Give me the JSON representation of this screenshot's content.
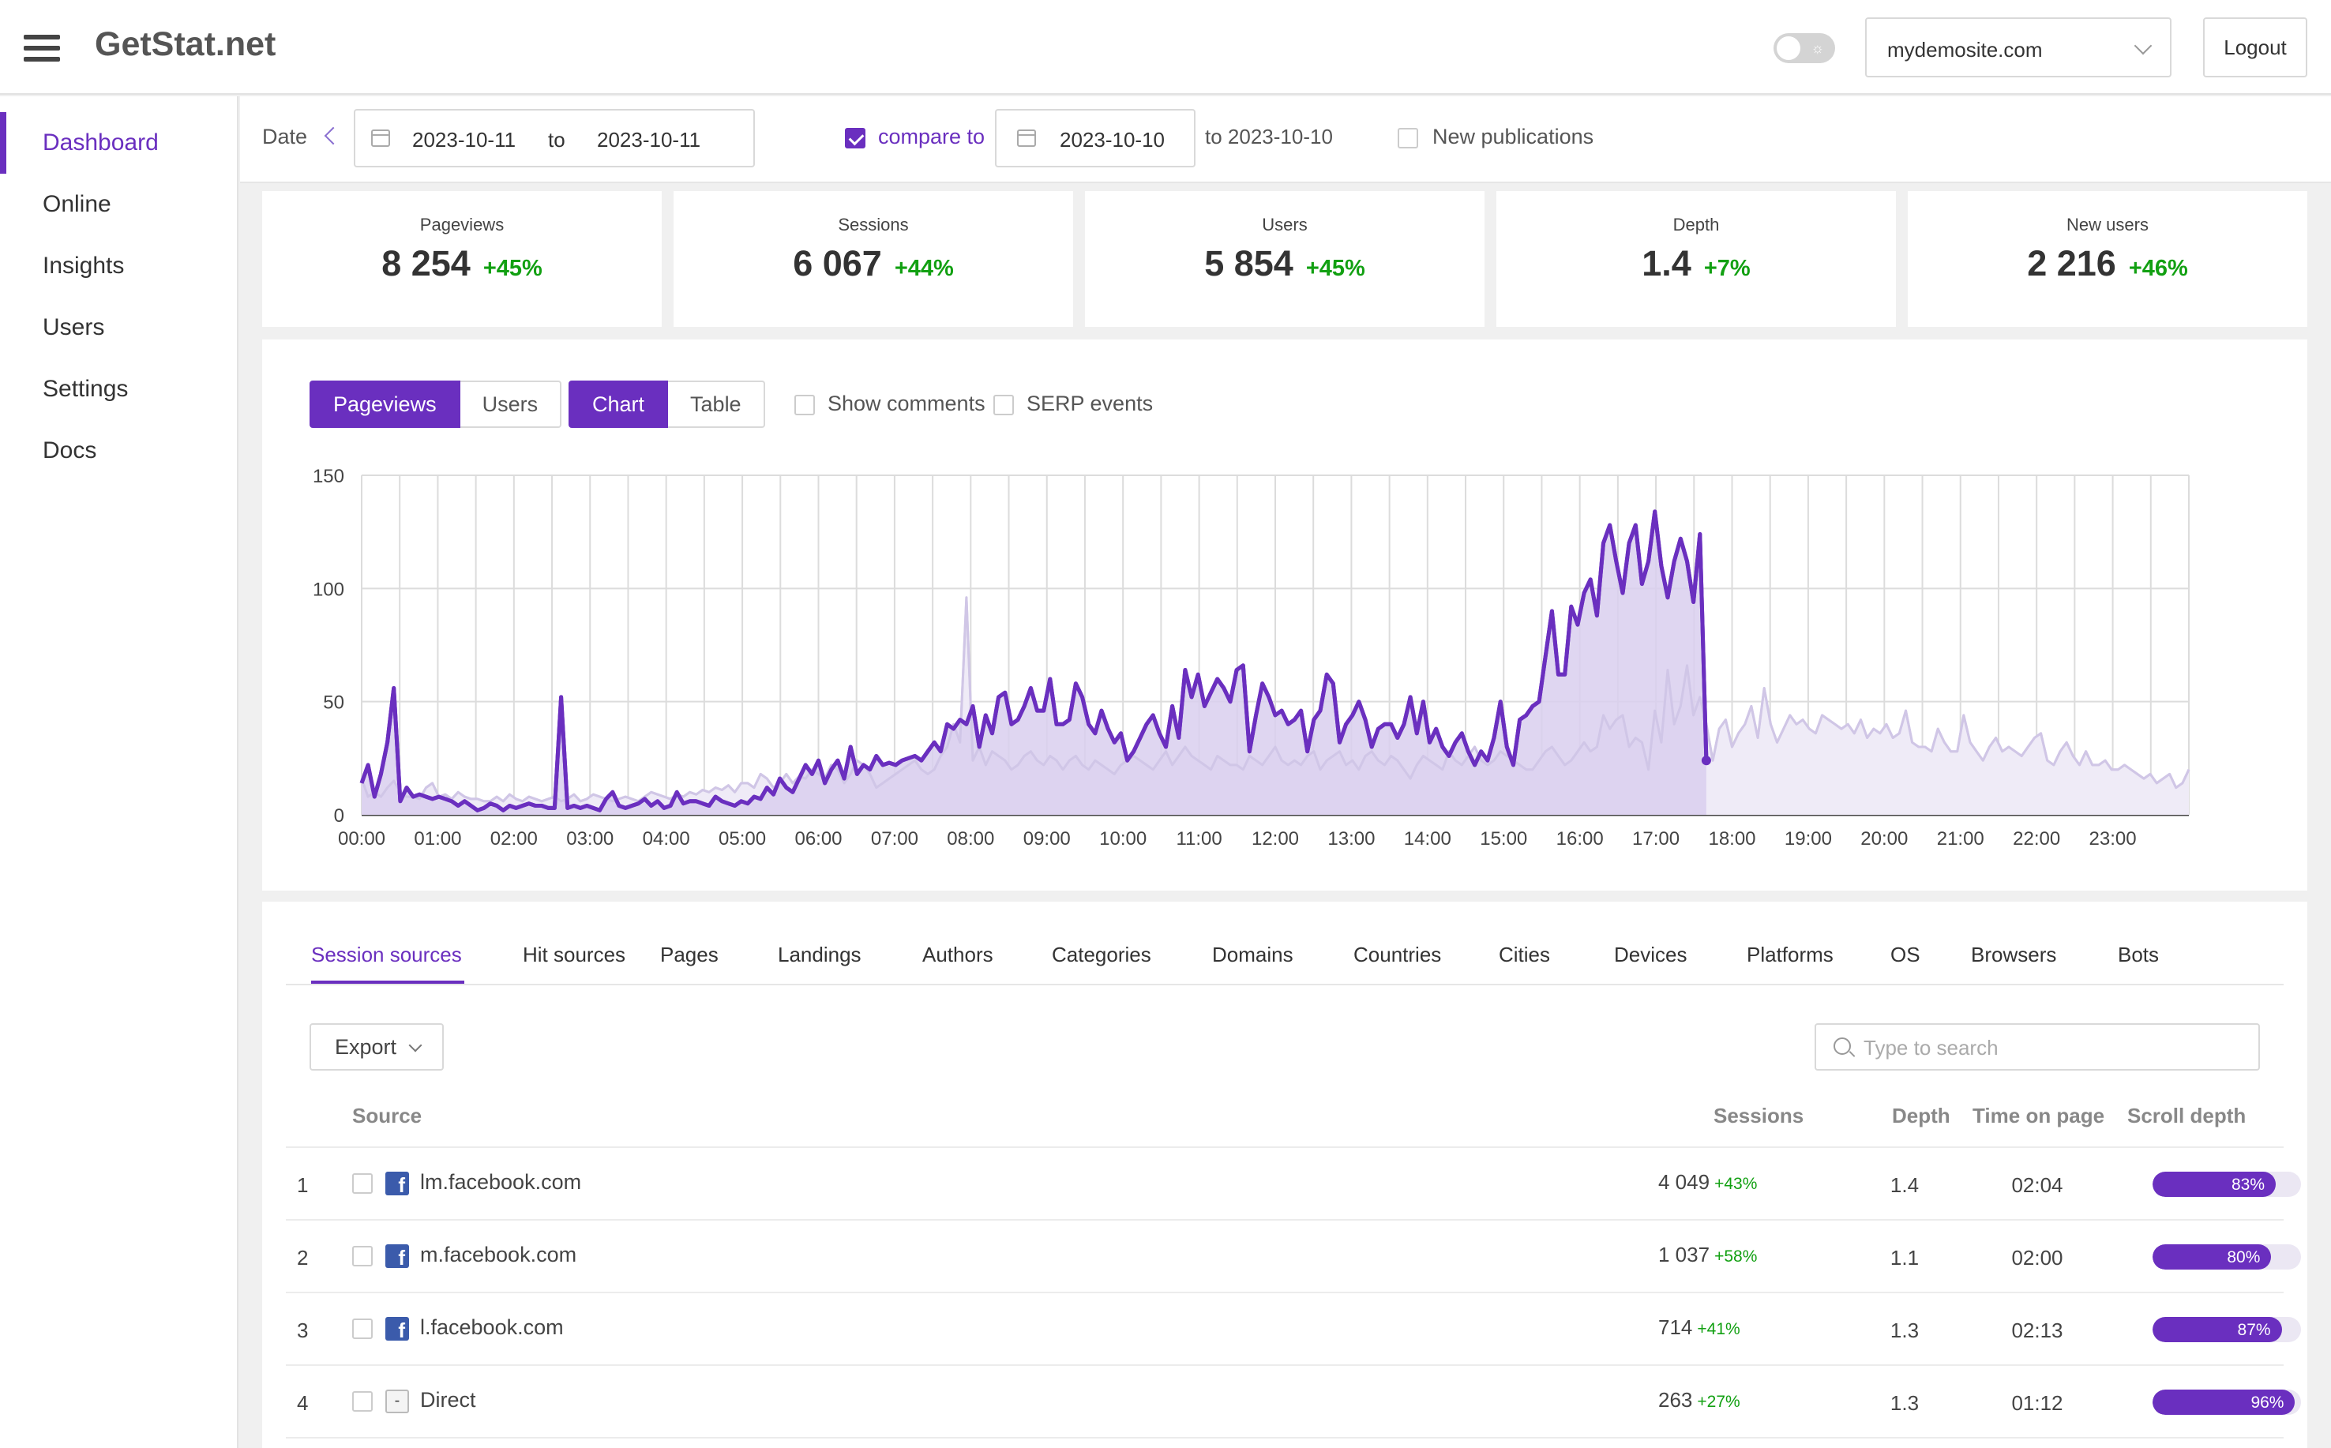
{
  "app": {
    "title": "GetStat.net"
  },
  "header": {
    "site": "mydemosite.com",
    "logout_label": "Logout"
  },
  "sidebar": {
    "items": [
      {
        "label": "Dashboard",
        "active": true
      },
      {
        "label": "Online"
      },
      {
        "label": "Insights"
      },
      {
        "label": "Users"
      },
      {
        "label": "Settings"
      },
      {
        "label": "Docs"
      }
    ]
  },
  "datebar": {
    "date_label": "Date",
    "from": "2023-10-11",
    "to_label": "to",
    "to": "2023-10-11",
    "compare_label": "compare to",
    "compare_from": "2023-10-10",
    "compare_to": "to 2023-10-10",
    "new_publications_label": "New publications"
  },
  "kpis": [
    {
      "label": "Pageviews",
      "value": "8 254",
      "change": "+45%"
    },
    {
      "label": "Sessions",
      "value": "6 067",
      "change": "+44%"
    },
    {
      "label": "Users",
      "value": "5 854",
      "change": "+45%"
    },
    {
      "label": "Depth",
      "value": "1.4",
      "change": "+7%"
    },
    {
      "label": "New users",
      "value": "2 216",
      "change": "+46%"
    }
  ],
  "chart_controls": {
    "metric_pageviews": "Pageviews",
    "metric_users": "Users",
    "view_chart": "Chart",
    "view_table": "Table",
    "show_comments": "Show comments",
    "serp_events": "SERP events"
  },
  "chart_data": {
    "type": "area",
    "x_labels": [
      "00:00",
      "01:00",
      "02:00",
      "03:00",
      "04:00",
      "05:00",
      "06:00",
      "07:00",
      "08:00",
      "09:00",
      "10:00",
      "11:00",
      "12:00",
      "13:00",
      "14:00",
      "15:00",
      "16:00",
      "17:00",
      "18:00",
      "19:00",
      "20:00",
      "21:00",
      "22:00",
      "23:00"
    ],
    "ylim": [
      0,
      150
    ],
    "yticks": [
      0,
      50,
      100,
      150
    ],
    "grid": true,
    "colors": {
      "current": "#6a2fbf",
      "current_fill": "#d9cfee",
      "compare": "#cfc5e6",
      "compare_fill": "#efebf7",
      "grid": "#dcdcdc"
    },
    "series": [
      {
        "points": 214,
        "values": [
          14,
          22,
          8,
          18,
          32,
          56,
          6,
          12,
          8,
          9,
          8,
          7,
          8,
          7,
          6,
          4,
          6,
          4,
          2,
          3,
          5,
          4,
          2,
          4,
          3,
          4,
          5,
          4,
          4,
          3,
          3,
          52,
          3,
          4,
          3,
          4,
          3,
          2,
          7,
          10,
          4,
          3,
          4,
          5,
          7,
          4,
          6,
          3,
          4,
          10,
          5,
          6,
          6,
          5,
          4,
          8,
          6,
          5,
          4,
          6,
          5,
          8,
          7,
          12,
          9,
          16,
          12,
          10,
          16,
          22,
          18,
          24,
          14,
          20,
          24,
          16,
          30,
          18,
          22,
          20,
          26,
          22,
          23,
          22,
          24,
          25,
          26,
          24,
          28,
          32,
          28,
          40,
          38,
          42,
          40,
          48,
          30,
          44,
          36,
          52,
          54,
          40,
          42,
          48,
          56,
          46,
          46,
          60,
          40,
          40,
          42,
          58,
          52,
          40,
          36,
          46,
          38,
          32,
          36,
          24,
          28,
          34,
          40,
          44,
          36,
          30,
          48,
          34,
          64,
          52,
          62,
          48,
          54,
          60,
          56,
          50,
          64,
          66,
          28,
          44,
          58,
          52,
          44,
          46,
          40,
          42,
          46,
          28,
          42,
          46,
          62,
          58,
          32,
          40,
          44,
          50,
          42,
          30,
          38,
          40,
          40,
          34,
          40,
          52,
          36,
          50,
          32,
          38,
          30,
          26,
          32,
          36,
          28,
          22,
          28,
          24,
          34,
          50,
          30,
          22,
          42,
          44,
          48,
          50,
          70,
          90,
          62,
          62,
          92,
          84,
          98,
          104,
          88,
          120,
          128,
          112,
          98,
          120,
          128,
          102,
          112,
          134,
          110,
          96,
          112,
          122,
          112,
          94,
          124,
          24
        ]
      },
      {
        "points": 285,
        "values": [
          16,
          8,
          10,
          8,
          12,
          15,
          10,
          8,
          8,
          7,
          12,
          14,
          8,
          9,
          7,
          10,
          8,
          7,
          7,
          6,
          6,
          8,
          6,
          9,
          7,
          6,
          8,
          7,
          6,
          7,
          8,
          6,
          7,
          9,
          6,
          7,
          9,
          8,
          7,
          6,
          7,
          8,
          7,
          6,
          8,
          10,
          9,
          8,
          7,
          9,
          8,
          10,
          9,
          11,
          10,
          12,
          11,
          13,
          10,
          14,
          14,
          12,
          18,
          16,
          12,
          14,
          18,
          14,
          17,
          16,
          20,
          18,
          16,
          22,
          20,
          14,
          18,
          24,
          22,
          18,
          12,
          14,
          16,
          18,
          20,
          22,
          24,
          20,
          18,
          20,
          26,
          30,
          40,
          32,
          96,
          24,
          30,
          22,
          28,
          26,
          24,
          20,
          22,
          26,
          28,
          24,
          22,
          26,
          24,
          20,
          24,
          26,
          22,
          20,
          24,
          22,
          20,
          18,
          22,
          24,
          26,
          24,
          22,
          20,
          24,
          28,
          22,
          26,
          30,
          26,
          24,
          22,
          20,
          26,
          24,
          22,
          22,
          20,
          26,
          24,
          22,
          26,
          30,
          24,
          22,
          24,
          22,
          26,
          28,
          20,
          24,
          26,
          28,
          22,
          24,
          20,
          26,
          28,
          24,
          22,
          26,
          24,
          20,
          16,
          22,
          26,
          24,
          22,
          20,
          28,
          24,
          22,
          26,
          30,
          24,
          22,
          24,
          28,
          26,
          24,
          22,
          20,
          20,
          24,
          28,
          30,
          26,
          22,
          24,
          28,
          32,
          28,
          30,
          44,
          38,
          42,
          44,
          30,
          34,
          32,
          20,
          46,
          32,
          64,
          40,
          48,
          66,
          44,
          52,
          40,
          24,
          38,
          42,
          30,
          36,
          40,
          48,
          34,
          56,
          40,
          32,
          38,
          44,
          40,
          42,
          38,
          36,
          44,
          42,
          40,
          38,
          40,
          36,
          42,
          34,
          38,
          36,
          40,
          34,
          36,
          46,
          32,
          30,
          30,
          28,
          38,
          32,
          28,
          28,
          44,
          32,
          28,
          24,
          30,
          34,
          28,
          30,
          28,
          26,
          30,
          34,
          36,
          24,
          22,
          28,
          32,
          26,
          22,
          28,
          22,
          22,
          24,
          20,
          20,
          22,
          20,
          18,
          16,
          18,
          14,
          16,
          18,
          12,
          14,
          20
        ]
      }
    ]
  },
  "table_tabs": [
    "Session sources",
    "Hit sources",
    "Pages",
    "Landings",
    "Authors",
    "Categories",
    "Domains",
    "Countries",
    "Cities",
    "Devices",
    "Platforms",
    "OS",
    "Browsers",
    "Bots"
  ],
  "table_controls": {
    "export_label": "Export",
    "search_placeholder": "Type to search"
  },
  "table": {
    "columns": {
      "source": "Source",
      "sessions": "Sessions",
      "depth": "Depth",
      "time_on_page": "Time on page",
      "scroll_depth": "Scroll depth"
    },
    "rows": [
      {
        "idx": "1",
        "icon": "facebook-icon",
        "source": "lm.facebook.com",
        "sessions": "4 049",
        "sessions_change": "+43%",
        "depth": "1.4",
        "time": "02:04",
        "scroll": "83%",
        "scroll_value": 0.83
      },
      {
        "idx": "2",
        "icon": "facebook-icon",
        "source": "m.facebook.com",
        "sessions": "1 037",
        "sessions_change": "+58%",
        "depth": "1.1",
        "time": "02:00",
        "scroll": "80%",
        "scroll_value": 0.8
      },
      {
        "idx": "3",
        "icon": "facebook-icon",
        "source": "l.facebook.com",
        "sessions": "714",
        "sessions_change": "+41%",
        "depth": "1.3",
        "time": "02:13",
        "scroll": "87%",
        "scroll_value": 0.87
      },
      {
        "idx": "4",
        "icon": "direct-icon",
        "icon_text": "-",
        "source": "Direct",
        "sessions": "263",
        "sessions_change": "+27%",
        "depth": "1.3",
        "time": "01:12",
        "scroll": "96%",
        "scroll_value": 0.96
      }
    ]
  }
}
